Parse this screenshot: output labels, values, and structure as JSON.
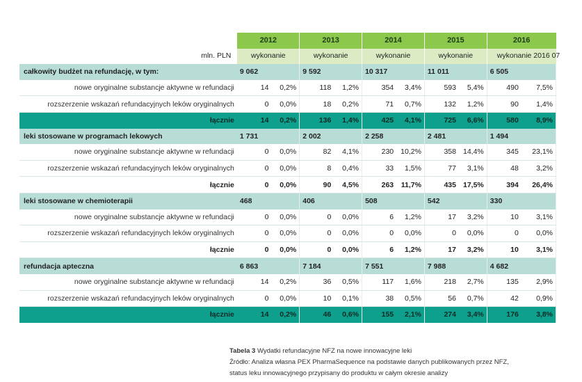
{
  "header": {
    "unit": "mln. PLN",
    "years": [
      "2012",
      "2013",
      "2014",
      "2015",
      "2016"
    ],
    "types": [
      "wykonanie",
      "wykonanie",
      "wykonanie",
      "wykonanie",
      "wykonanie 2016 07"
    ]
  },
  "rows": [
    {
      "kind": "section",
      "label": "całkowity budżet na refundację, w tym:",
      "cells": [
        "9 062",
        "",
        "9 592",
        "",
        "10 317",
        "",
        "11 011",
        "",
        "6 505",
        ""
      ]
    },
    {
      "kind": "sub",
      "label": "nowe oryginalne substancje aktywne w refundacji",
      "cells": [
        "14",
        "0,2%",
        "118",
        "1,2%",
        "354",
        "3,4%",
        "593",
        "5,4%",
        "490",
        "7,5%"
      ]
    },
    {
      "kind": "sub",
      "label": "rozszerzenie wskazań refundacyjnych leków oryginalnych",
      "cells": [
        "0",
        "0,0%",
        "18",
        "0,2%",
        "71",
        "0,7%",
        "132",
        "1,2%",
        "90",
        "1,4%"
      ]
    },
    {
      "kind": "sumg",
      "label": "łącznie",
      "cells": [
        "14",
        "0,2%",
        "136",
        "1,4%",
        "425",
        "4,1%",
        "725",
        "6,6%",
        "580",
        "8,9%"
      ]
    },
    {
      "kind": "section",
      "label": "leki stosowane w programach lekowych",
      "cells": [
        "1 731",
        "",
        "2 002",
        "",
        "2 258",
        "",
        "2 481",
        "",
        "1 494",
        ""
      ]
    },
    {
      "kind": "sub",
      "label": "nowe oryginalne substancje aktywne w refundacji",
      "cells": [
        "0",
        "0,0%",
        "82",
        "4,1%",
        "230",
        "10,2%",
        "358",
        "14,4%",
        "345",
        "23,1%"
      ]
    },
    {
      "kind": "sub",
      "label": "rozszerzenie wskazań refundacyjnych leków oryginalnych",
      "cells": [
        "0",
        "0,0%",
        "8",
        "0,4%",
        "33",
        "1,5%",
        "77",
        "3,1%",
        "48",
        "3,2%"
      ]
    },
    {
      "kind": "sumw",
      "label": "łącznie",
      "cells": [
        "0",
        "0,0%",
        "90",
        "4,5%",
        "263",
        "11,7%",
        "435",
        "17,5%",
        "394",
        "26,4%"
      ]
    },
    {
      "kind": "section",
      "label": "leki stosowane w chemioterapii",
      "cells": [
        "468",
        "",
        "406",
        "",
        "508",
        "",
        "542",
        "",
        "330",
        ""
      ]
    },
    {
      "kind": "sub",
      "label": "nowe oryginalne substancje aktywne w refundacji",
      "cells": [
        "0",
        "0,0%",
        "0",
        "0,0%",
        "6",
        "1,2%",
        "17",
        "3,2%",
        "10",
        "3,1%"
      ]
    },
    {
      "kind": "sub",
      "label": "rozszerzenie wskazań refundacyjnych leków oryginalnych",
      "cells": [
        "0",
        "0,0%",
        "0",
        "0,0%",
        "0",
        "0,0%",
        "0",
        "0,0%",
        "0",
        "0,0%"
      ]
    },
    {
      "kind": "sumw",
      "label": "łącznie",
      "cells": [
        "0",
        "0,0%",
        "0",
        "0,0%",
        "6",
        "1,2%",
        "17",
        "3,2%",
        "10",
        "3,1%"
      ]
    },
    {
      "kind": "section",
      "label": "refundacja apteczna",
      "cells": [
        "6 863",
        "",
        "7 184",
        "",
        "7 551",
        "",
        "7 988",
        "",
        "4 682",
        ""
      ]
    },
    {
      "kind": "sub",
      "label": "nowe oryginalne substancje aktywne w refundacji",
      "cells": [
        "14",
        "0,2%",
        "36",
        "0,5%",
        "117",
        "1,6%",
        "218",
        "2,7%",
        "135",
        "2,9%"
      ]
    },
    {
      "kind": "sub",
      "label": "rozszerzenie wskazań refundacyjnych leków oryginalnych",
      "cells": [
        "0",
        "0,0%",
        "10",
        "0,1%",
        "38",
        "0,5%",
        "56",
        "0,7%",
        "42",
        "0,9%"
      ]
    },
    {
      "kind": "sumg",
      "label": "łącznie",
      "cells": [
        "14",
        "0,2%",
        "46",
        "0,6%",
        "155",
        "2,1%",
        "274",
        "3,4%",
        "176",
        "3,8%"
      ]
    }
  ],
  "caption": {
    "table_label": "Tabela 3",
    "title": "Wydatki refundacyjne NFZ na nowe innowacyjne leki",
    "source_line1": "Źródło: Analiza własna PEX PharmaSequence na podstawie danych publikowanych przez NFZ,",
    "source_line2": "status leku innowacyjnego przypisany do produktu w całym okresie analizy"
  }
}
